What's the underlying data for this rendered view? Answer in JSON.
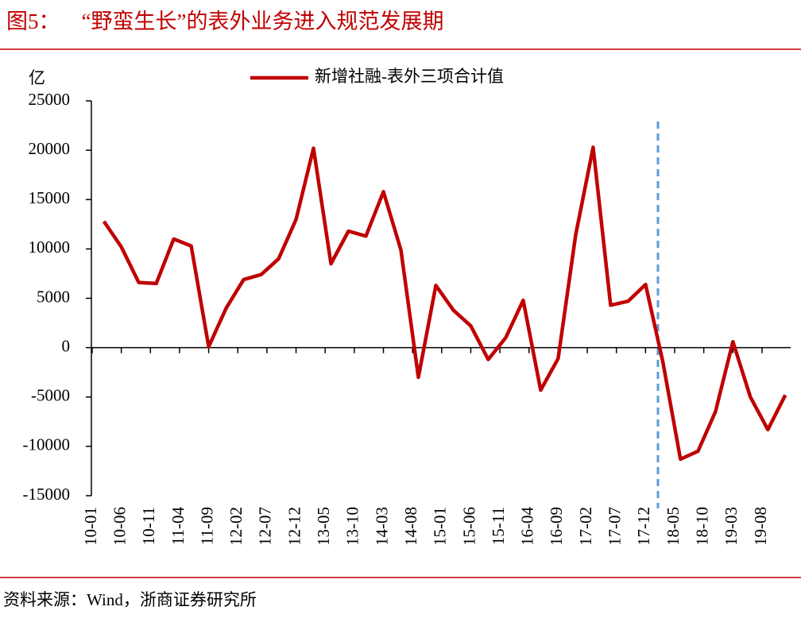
{
  "chart_data": {
    "type": "line",
    "title": "图5：    “野蛮生长”的表外业务进入规范发展期",
    "source": "资料来源：Wind，浙商证券研究所",
    "y_label": "亿",
    "categories": [
      "10-01",
      null,
      null,
      null,
      null,
      "10-06",
      null,
      null,
      null,
      null,
      "10-11",
      null,
      null,
      null,
      null,
      "11-04",
      null,
      null,
      null,
      null,
      "11-09",
      null,
      null,
      null,
      null,
      "12-02",
      null,
      null,
      null,
      null,
      "12-07",
      null,
      null,
      null,
      null,
      "12-12",
      null,
      null,
      null,
      null,
      "13-05",
      null,
      null,
      null,
      null,
      "13-10",
      null,
      null,
      null,
      null,
      "14-03",
      null,
      null,
      null,
      null,
      "14-08",
      null,
      null,
      null,
      null,
      "15-01",
      null,
      null,
      null,
      null,
      "15-06",
      null,
      null,
      null,
      null,
      "15-11",
      null,
      null,
      null,
      null,
      "16-04",
      null,
      null,
      null,
      null,
      "16-09",
      null,
      null,
      null,
      null,
      "17-02",
      null,
      null,
      null,
      null,
      "17-07",
      null,
      null,
      null,
      null,
      "17-12",
      null,
      null,
      null,
      null,
      "18-05",
      null,
      null,
      null,
      null,
      "18-10",
      null,
      null,
      null,
      null,
      "19-03",
      null,
      null,
      null,
      null,
      "19-08",
      null,
      null,
      null,
      null
    ],
    "series": [
      {
        "name": "新增社融-表外三项合计值",
        "color": "#c00000",
        "values": [
          null,
          null,
          12800,
          null,
          null,
          10200,
          null,
          null,
          6600,
          null,
          null,
          6500,
          null,
          null,
          11000,
          null,
          null,
          10300,
          null,
          null,
          100,
          null,
          null,
          4000,
          null,
          null,
          6900,
          null,
          null,
          7400,
          null,
          null,
          9000,
          null,
          null,
          13000,
          null,
          null,
          20200,
          null,
          null,
          8500,
          null,
          null,
          11800,
          null,
          null,
          11300,
          null,
          null,
          15800,
          null,
          null,
          9900,
          null,
          null,
          -3000,
          null,
          null,
          6300,
          null,
          null,
          3800,
          null,
          null,
          2200,
          null,
          null,
          -1200,
          null,
          null,
          1000,
          null,
          null,
          4800,
          null,
          null,
          -4300,
          null,
          null,
          -1100,
          null,
          null,
          11400,
          null,
          null,
          20300,
          null,
          null,
          4300,
          null,
          null,
          4700,
          null,
          null,
          6400,
          null,
          null,
          -1500,
          null,
          null,
          -11300,
          null,
          null,
          -10500,
          null,
          null,
          -6500,
          null,
          null,
          600,
          null,
          null,
          -5000,
          null,
          null,
          -8300,
          null,
          null,
          -4800
        ]
      }
    ],
    "ylim": [
      -15000,
      25000
    ],
    "yticks": [
      -15000,
      -10000,
      -5000,
      0,
      5000,
      10000,
      15000,
      20000,
      25000
    ],
    "legend": "top"
  }
}
